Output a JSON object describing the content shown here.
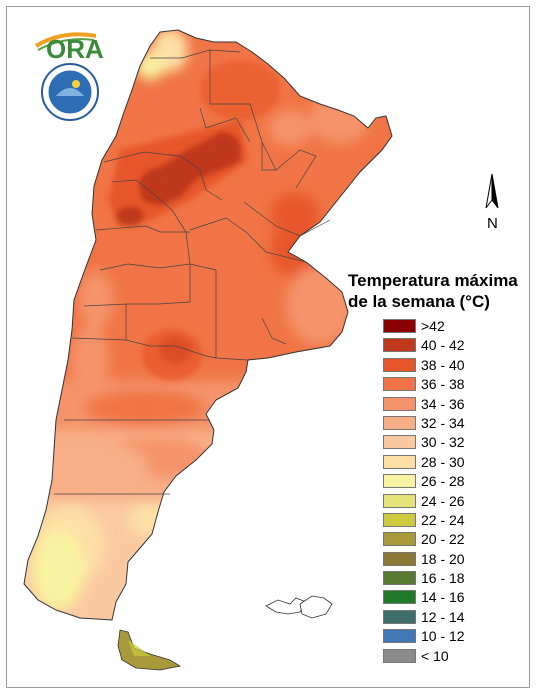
{
  "legend": {
    "title_line1": "Temperatura máxima",
    "title_line2": "de la semana (°C)",
    "items": [
      {
        "label": ">42",
        "color": "#8b0000"
      },
      {
        "label": "40 - 42",
        "color": "#c0391b"
      },
      {
        "label": "38 - 40",
        "color": "#e7562a"
      },
      {
        "label": "36 - 38",
        "color": "#f07445"
      },
      {
        "label": "34 - 36",
        "color": "#f5936a"
      },
      {
        "label": "32 - 34",
        "color": "#f8ae86"
      },
      {
        "label": "30 - 32",
        "color": "#fbc9a1"
      },
      {
        "label": "28 - 30",
        "color": "#fde0a6"
      },
      {
        "label": "26 - 28",
        "color": "#f8f3a0"
      },
      {
        "label": "24 - 26",
        "color": "#e4e47a"
      },
      {
        "label": "22 - 24",
        "color": "#cccc3e"
      },
      {
        "label": "20 - 22",
        "color": "#a89a3a"
      },
      {
        "label": "18 - 20",
        "color": "#8c7a34"
      },
      {
        "label": "16 - 18",
        "color": "#557a30"
      },
      {
        "label": "14 - 16",
        "color": "#1f7a2a"
      },
      {
        "label": "12 - 14",
        "color": "#3d6e6a"
      },
      {
        "label": "10 - 12",
        "color": "#3f78b4"
      },
      {
        "label": "< 10",
        "color": "#8a8a8a"
      }
    ]
  },
  "north_arrow": {
    "label": "N"
  },
  "logo": {
    "text": "ORA"
  }
}
